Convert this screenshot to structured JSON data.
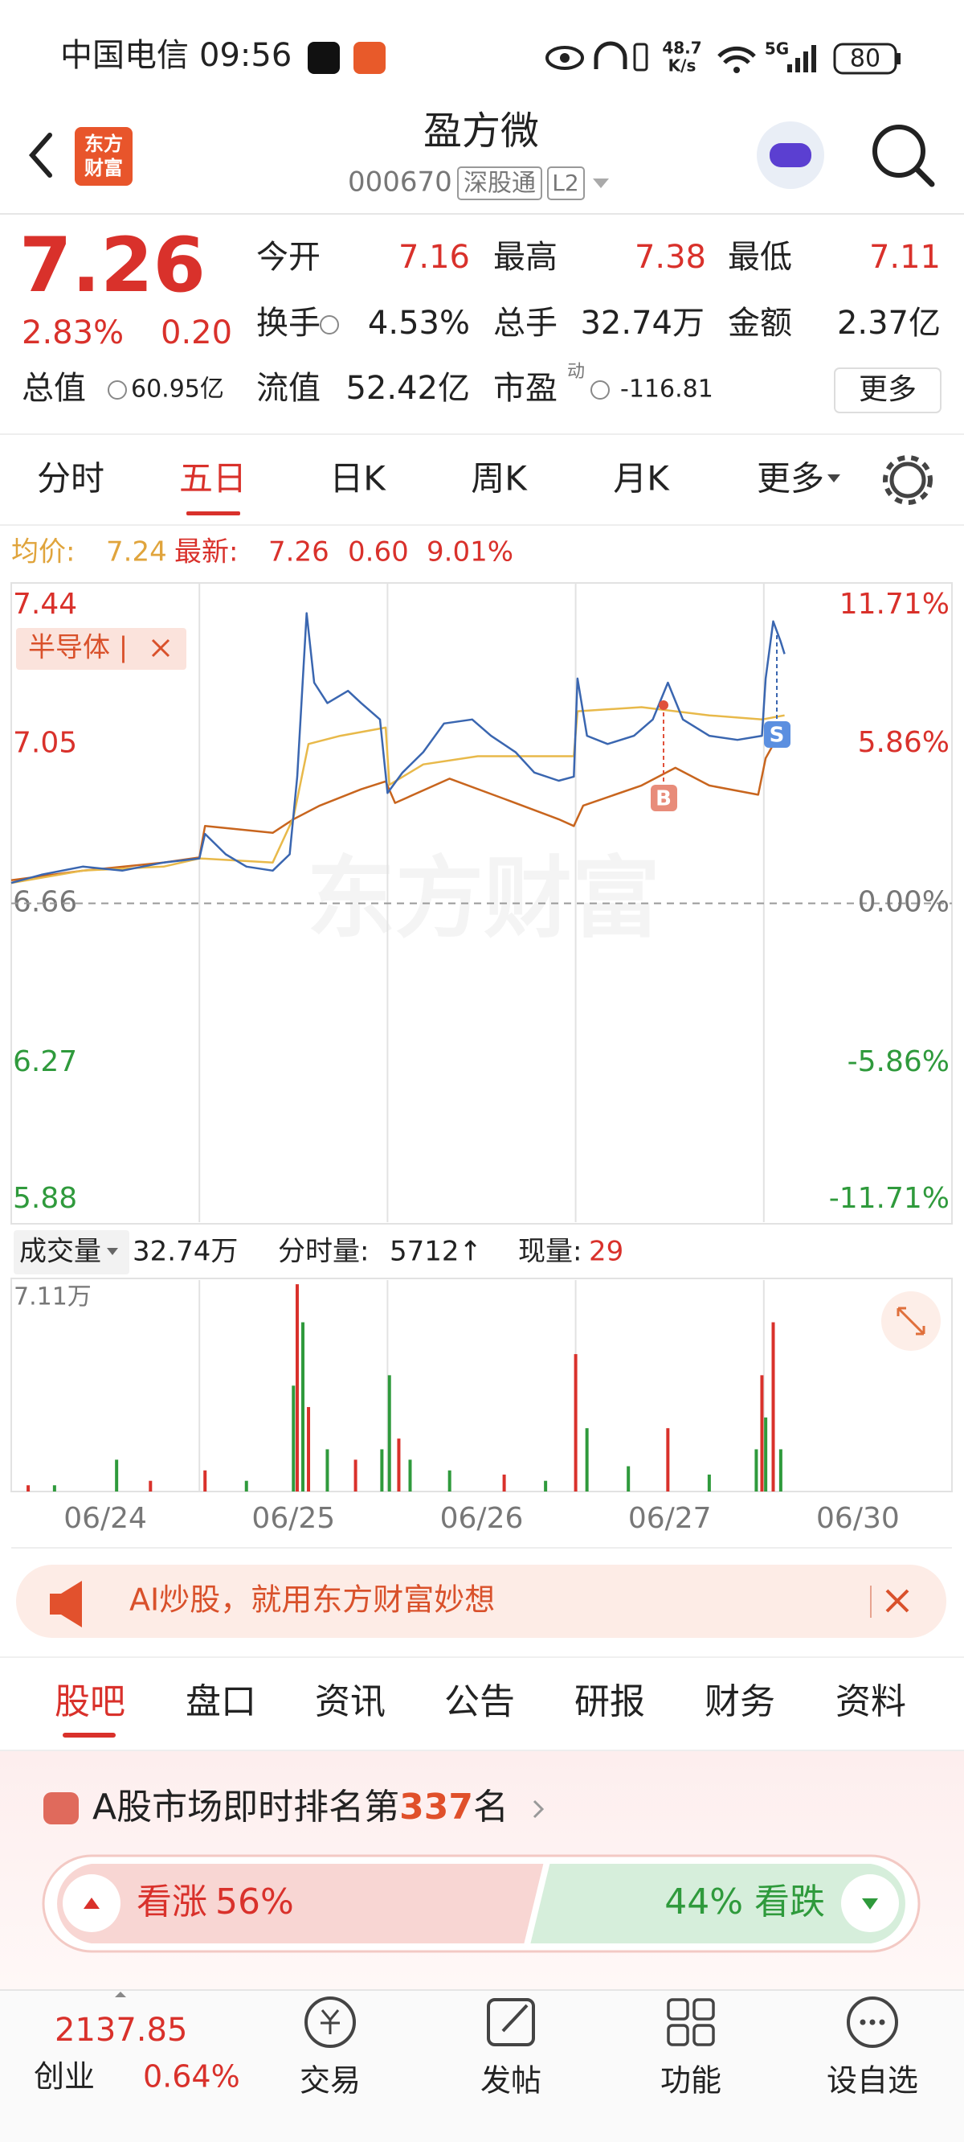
{
  "status_bar": {
    "carrier": "中国电信",
    "time": "09:56",
    "net_speed": "48.7",
    "net_unit": "K/s",
    "network": "5G",
    "battery": "80"
  },
  "header": {
    "logo_lines": [
      "东方",
      "财富"
    ],
    "title": "盈方微",
    "code": "000670",
    "badge": "深股通",
    "level": "L2"
  },
  "quote": {
    "price": "7.26",
    "change_pct": "2.83%",
    "change": "0.20",
    "fields": [
      {
        "label": "今开",
        "value": "7.16"
      },
      {
        "label": "最高",
        "value": "7.38"
      },
      {
        "label": "最低",
        "value": "7.11"
      },
      {
        "label": "换手",
        "value": "4.53%"
      },
      {
        "label": "总手",
        "value": "32.74万"
      },
      {
        "label": "金额",
        "value": "2.37亿"
      },
      {
        "label": "总值",
        "value": "60.95亿"
      },
      {
        "label": "流值",
        "value": "52.42亿"
      },
      {
        "label": "市盈",
        "value": "-116.81"
      }
    ],
    "pe_note": "动",
    "more": "更多"
  },
  "period_tabs": [
    "分时",
    "五日",
    "日K",
    "周K",
    "月K",
    "更多"
  ],
  "info": {
    "avg_label": "均价:",
    "avg": "7.24",
    "latest_label": "最新:",
    "latest": "7.26",
    "change": "0.60",
    "change_pct": "9.01%"
  },
  "chart_data": [
    {
      "type": "line",
      "overlay_tag": "半导体 |",
      "markers": [
        "B",
        "S"
      ],
      "xlim": [
        0,
        5
      ],
      "ylim": [
        5.88,
        7.44
      ],
      "yticks": [
        7.44,
        7.05,
        6.66,
        6.27,
        5.88
      ],
      "y2lim": [
        -11.71,
        11.71
      ],
      "y2ticks": [
        {
          "value": 11.71,
          "label": "11.71%"
        },
        {
          "value": 5.86,
          "label": "5.86%"
        },
        {
          "value": 0,
          "label": "0.00%"
        },
        {
          "value": -5.86,
          "label": "-5.86%"
        },
        {
          "value": -11.71,
          "label": "-11.71%"
        }
      ],
      "series": [
        {
          "color": "#3a66b0",
          "x": [
            0,
            0.16,
            0.38,
            0.59,
            0.81,
            1.0,
            1.03,
            1.14,
            1.25,
            1.39,
            1.48,
            1.52,
            1.57,
            1.61,
            1.68,
            1.79,
            1.86,
            1.96,
            2.0,
            2.08,
            2.19,
            2.3,
            2.45,
            2.55,
            2.68,
            2.78,
            2.91,
            2.99,
            3.01,
            3.06,
            3.17,
            3.31,
            3.41,
            3.49,
            3.57,
            3.71,
            3.86,
            3.99,
            4.01,
            4.05,
            4.09,
            4.11
          ],
          "values": [
            6.71,
            6.73,
            6.75,
            6.74,
            6.76,
            6.77,
            6.83,
            6.78,
            6.75,
            6.74,
            6.78,
            6.97,
            7.37,
            7.2,
            7.15,
            7.18,
            7.15,
            7.11,
            6.93,
            6.98,
            7.03,
            7.1,
            7.11,
            7.07,
            7.03,
            6.98,
            6.96,
            6.97,
            7.21,
            7.07,
            7.05,
            7.07,
            7.11,
            7.2,
            7.11,
            7.07,
            7.06,
            7.07,
            7.21,
            7.35,
            7.3,
            7.27
          ]
        },
        {
          "color": "#e8b94a",
          "x": [
            0,
            0.38,
            0.81,
            1.0,
            1.39,
            1.5,
            1.58,
            1.75,
            1.99,
            2.01,
            2.19,
            2.48,
            2.99,
            3.01,
            3.35,
            3.71,
            3.99,
            4.11
          ],
          "values": [
            6.71,
            6.74,
            6.75,
            6.77,
            6.76,
            6.87,
            7.05,
            7.07,
            7.09,
            6.95,
            7.0,
            7.02,
            7.02,
            7.13,
            7.14,
            7.12,
            7.11,
            7.12
          ]
        },
        {
          "name": "半导体",
          "axis": "y2",
          "color": "#c8651e",
          "x": [
            0,
            0.38,
            0.81,
            1.0,
            1.03,
            1.39,
            1.5,
            1.64,
            1.86,
            1.99,
            2.04,
            2.33,
            2.62,
            2.91,
            2.99,
            3.04,
            3.35,
            3.53,
            3.71,
            3.97,
            4.01,
            4.07
          ],
          "values": [
            0.85,
            1.2,
            1.5,
            1.69,
            2.84,
            2.59,
            3.09,
            3.59,
            4.19,
            4.48,
            3.69,
            4.58,
            3.84,
            3.09,
            2.84,
            3.59,
            4.33,
            4.98,
            4.33,
            3.99,
            5.33,
            6.08
          ]
        }
      ]
    },
    {
      "type": "bar",
      "xlim": [
        0,
        5
      ],
      "ylim": [
        0,
        7.11
      ],
      "yticks": [
        {
          "value": 7.11,
          "label": "7.11万"
        }
      ],
      "xticks": [
        {
          "value": 0.5,
          "label": "06/24"
        },
        {
          "value": 1.5,
          "label": "06/25"
        },
        {
          "value": 2.5,
          "label": "06/26"
        },
        {
          "value": 3.5,
          "label": "06/27"
        },
        {
          "value": 4.5,
          "label": "06/30"
        }
      ],
      "x": [
        0.09,
        0.23,
        0.56,
        0.74,
        1.03,
        1.25,
        1.5,
        1.52,
        1.55,
        1.58,
        1.68,
        1.83,
        1.97,
        2.01,
        2.06,
        2.12,
        2.33,
        2.62,
        2.84,
        3.0,
        3.06,
        3.28,
        3.49,
        3.71,
        3.96,
        3.99,
        4.01,
        4.05,
        4.09
      ],
      "values": [
        0.21,
        0.21,
        1.07,
        0.36,
        0.71,
        0.36,
        3.56,
        6.97,
        5.69,
        2.84,
        1.42,
        1.07,
        1.42,
        3.91,
        1.78,
        1.07,
        0.71,
        0.57,
        0.36,
        4.62,
        2.13,
        0.85,
        2.13,
        0.57,
        1.42,
        3.91,
        2.49,
        5.69,
        1.42
      ],
      "colors": [
        "#d9312b",
        "#2f9a3c",
        "#2f9a3c",
        "#d9312b",
        "#d9312b",
        "#2f9a3c",
        "#2f9a3c",
        "#d9312b",
        "#2f9a3c",
        "#d9312b",
        "#2f9a3c",
        "#d9312b",
        "#2f9a3c",
        "#2f9a3c",
        "#d9312b",
        "#2f9a3c",
        "#2f9a3c",
        "#d9312b",
        "#2f9a3c",
        "#d9312b",
        "#2f9a3c",
        "#2f9a3c",
        "#d9312b",
        "#2f9a3c",
        "#2f9a3c",
        "#d9312b",
        "#2f9a3c",
        "#d9312b",
        "#2f9a3c"
      ]
    }
  ],
  "volume_header": {
    "label": "成交量",
    "total": "32.74万",
    "tick_label": "分时量:",
    "tick": "5712↑",
    "now_label": "现量:",
    "now": "29"
  },
  "ad": {
    "text": "AI炒股，就用东方财富妙想"
  },
  "content_tabs": [
    "股吧",
    "盘口",
    "资讯",
    "公告",
    "研报",
    "财务",
    "资料"
  ],
  "ranking": {
    "prefix": "A股市场即时排名第",
    "rank": "337",
    "suffix": "名"
  },
  "sentiment": {
    "up": {
      "label": "看涨",
      "value": 56,
      "value_label": "56%"
    },
    "down": {
      "label": "看跌",
      "value": 44,
      "value_label": "44%"
    }
  },
  "bottom_nav": {
    "index_value": "2137.85",
    "index_name": "创业",
    "index_change": "0.64%",
    "items": [
      "交易",
      "发帖",
      "功能",
      "设自选"
    ]
  }
}
